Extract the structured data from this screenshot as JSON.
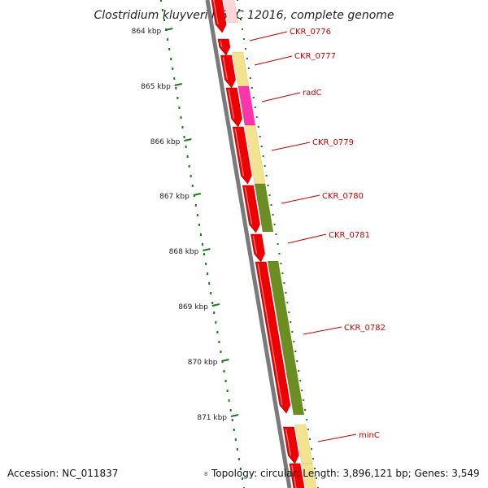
{
  "title": "Clostridium kluyveri NBRC 12016, complete genome",
  "footer": {
    "accession": "Accession: NC_011837",
    "topology_prefix": "8",
    "topology": "Topology: circular; Length: 3,896,121 bp; Genes: 3,549"
  },
  "colors": {
    "backbone": "#7a7a7a",
    "gene_red": "#ee0000",
    "gene_yellow": "#f2e48e",
    "gene_pink": "#ff33aa",
    "gene_olive": "#6b8e23",
    "tick_green": "#1a7a1a",
    "label_red": "#cc0000"
  },
  "scale": {
    "ticks": [
      {
        "label": "864 kbp"
      },
      {
        "label": "865 kbp"
      },
      {
        "label": "866 kbp"
      },
      {
        "label": "867 kbp"
      },
      {
        "label": "868 kbp"
      },
      {
        "label": "869 kbp"
      },
      {
        "label": "870 kbp"
      },
      {
        "label": "871 kbp"
      }
    ]
  },
  "genes": [
    {
      "name": "CKR_0776"
    },
    {
      "name": "CKR_0777"
    },
    {
      "name": "radC"
    },
    {
      "name": "CKR_0779"
    },
    {
      "name": "CKR_0780"
    },
    {
      "name": "CKR_0781"
    },
    {
      "name": "CKR_0782"
    },
    {
      "name": "minC"
    }
  ]
}
